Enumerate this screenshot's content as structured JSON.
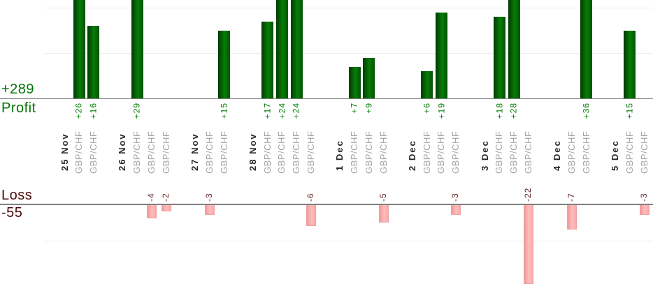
{
  "page": {
    "background": "#ffffff"
  },
  "chart_data": {
    "type": "bar",
    "profit_axis_label": "Profit",
    "profit_total": "+289",
    "loss_axis_label": "Loss",
    "loss_total": "-55",
    "grid": true,
    "profit_gridline_values": [
      10,
      20
    ],
    "loss_gridline_values": [
      -10
    ],
    "groups": [
      {
        "date": "25 Nov",
        "trades": [
          {
            "symbol": "GBP/CHF",
            "value": 26,
            "label": "+26"
          },
          {
            "symbol": "GBP/CHF",
            "value": 16,
            "label": "+16"
          }
        ]
      },
      {
        "date": "26 Nov",
        "trades": [
          {
            "symbol": "GBP/CHF",
            "value": 29,
            "label": "+29"
          },
          {
            "symbol": "GBP/CHF",
            "value": -4,
            "label": "-4"
          },
          {
            "symbol": "GBP/CHF",
            "value": -2,
            "label": "-2"
          }
        ]
      },
      {
        "date": "27 Nov",
        "trades": [
          {
            "symbol": "GBP/CHF",
            "value": -3,
            "label": "-3"
          },
          {
            "symbol": "GBP/CHF",
            "value": 15,
            "label": "+15"
          }
        ]
      },
      {
        "date": "28 Nov",
        "trades": [
          {
            "symbol": "GBP/CHF",
            "value": 17,
            "label": "+17"
          },
          {
            "symbol": "GBP/CHF",
            "value": 24,
            "label": "+24"
          },
          {
            "symbol": "GBP/CHF",
            "value": 24,
            "label": "+24"
          },
          {
            "symbol": "GBP/CHF",
            "value": -6,
            "label": "-6"
          }
        ]
      },
      {
        "date": "1 Dec",
        "trades": [
          {
            "symbol": "GBP/CHF",
            "value": 7,
            "label": "+7"
          },
          {
            "symbol": "GBP/CHF",
            "value": 9,
            "label": "+9"
          },
          {
            "symbol": "GBP/CHF",
            "value": -5,
            "label": "-5"
          }
        ]
      },
      {
        "date": "2 Dec",
        "trades": [
          {
            "symbol": "GBP/CHF",
            "value": 6,
            "label": "+6"
          },
          {
            "symbol": "GBP/CHF",
            "value": 19,
            "label": "+19"
          },
          {
            "symbol": "GBP/CHF",
            "value": -3,
            "label": "-3"
          }
        ]
      },
      {
        "date": "3 Dec",
        "trades": [
          {
            "symbol": "GBP/CHF",
            "value": 18,
            "label": "+18"
          },
          {
            "symbol": "GBP/CHF",
            "value": 28,
            "label": "+28"
          },
          {
            "symbol": "GBP/CHF",
            "value": -22,
            "label": "-22"
          }
        ]
      },
      {
        "date": "4 Dec",
        "trades": [
          {
            "symbol": "GBP/CHF",
            "value": -7,
            "label": "-7"
          },
          {
            "symbol": "GBP/CHF",
            "value": 36,
            "label": "+36"
          }
        ]
      },
      {
        "date": "5 Dec",
        "trades": [
          {
            "symbol": "GBP/CHF",
            "value": 15,
            "label": "+15"
          },
          {
            "symbol": "GBP/CHF",
            "value": -3,
            "label": "-3"
          }
        ]
      }
    ],
    "colors": {
      "profit_label": "#007300",
      "profit_value": "#007d00",
      "loss_label": "#4d0c0c",
      "loss_value": "#5c1a1a",
      "date_label": "#262626",
      "symbol_label": "#a6a6a6",
      "axis_line": "#808080",
      "gridline": "#ededed",
      "profit_bar_dark": "#023a02",
      "profit_bar_bright": "#077d07",
      "profit_bar_edge": "#035203",
      "loss_bar_dark": "#f29898",
      "loss_bar_bright": "#ffbdbd",
      "loss_bar_edge": "#f9a8a8"
    }
  }
}
